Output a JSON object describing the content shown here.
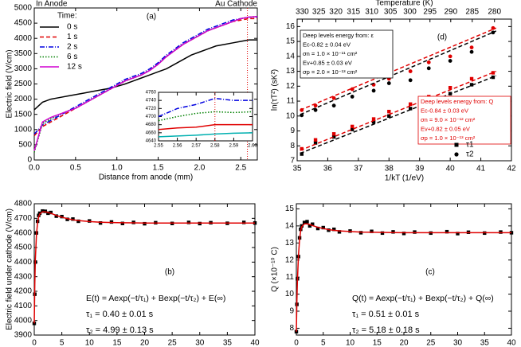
{
  "chart_data": [
    {
      "type": "line",
      "panel_label": "(a)",
      "annotations": [
        "In Anode",
        "Au Cathode"
      ],
      "xlabel": "Distance from anode (mm)",
      "ylabel": "Electric field (V/cm)",
      "xlim": [
        0,
        2.7
      ],
      "xticks": [
        {
          "value": 0,
          "label": "0.0"
        },
        0.5,
        {
          "value": 1,
          "label": "1.0"
        },
        1.5,
        {
          "value": 2,
          "label": "2.0"
        },
        2.5
      ],
      "ylim": [
        0,
        5000
      ],
      "yticks": [
        0,
        500,
        1000,
        1500,
        2000,
        2500,
        3000,
        3500,
        4000,
        4500,
        5000
      ],
      "vline": 2.58,
      "vline_color": "#e00000",
      "legend_title": "Time:",
      "x": [
        0,
        0.1,
        0.2,
        0.3,
        0.4,
        0.5,
        0.6,
        0.7,
        0.8,
        0.9,
        1.0,
        1.1,
        1.2,
        1.3,
        1.4,
        1.5,
        1.6,
        1.7,
        1.8,
        1.9,
        2.0,
        2.1,
        2.2,
        2.3,
        2.4,
        2.5,
        2.6,
        2.7
      ],
      "series": [
        {
          "name": "0 s",
          "color": "#000000",
          "dash": "solid",
          "values": [
            1650,
            1900,
            2000,
            2050,
            2100,
            2150,
            2200,
            2250,
            2300,
            2350,
            2420,
            2500,
            2600,
            2700,
            2800,
            2900,
            3000,
            3150,
            3300,
            3450,
            3550,
            3650,
            3750,
            3800,
            3850,
            3900,
            3950,
            3950
          ]
        },
        {
          "name": "1 s",
          "color": "#e00000",
          "dash": "dashed",
          "values": [
            800,
            1100,
            1250,
            1400,
            1550,
            1700,
            1850,
            2000,
            2150,
            2300,
            2450,
            2600,
            2700,
            2800,
            2950,
            3150,
            3400,
            3600,
            3800,
            3950,
            4100,
            4250,
            4350,
            4450,
            4550,
            4600,
            4650,
            4650
          ]
        },
        {
          "name": "2 s",
          "color": "#0000e0",
          "dash": "dashdot",
          "values": [
            850,
            1150,
            1300,
            1450,
            1600,
            1750,
            1900,
            2050,
            2200,
            2350,
            2500,
            2650,
            2750,
            2850,
            3000,
            3200,
            3450,
            3650,
            3850,
            4000,
            4150,
            4300,
            4400,
            4500,
            4600,
            4650,
            4700,
            4700
          ]
        },
        {
          "name": "6 s",
          "color": "#008000",
          "dash": "dotted",
          "values": [
            250,
            1200,
            1350,
            1500,
            1600,
            1700,
            1850,
            2000,
            2150,
            2300,
            2450,
            2600,
            2700,
            2800,
            2950,
            3150,
            3400,
            3600,
            3800,
            3950,
            4100,
            4250,
            4350,
            4450,
            4550,
            4650,
            4700,
            4720
          ]
        },
        {
          "name": "12 s",
          "color": "#d000d0",
          "dash": "solid",
          "values": [
            300,
            1250,
            1400,
            1500,
            1600,
            1700,
            1850,
            2000,
            2150,
            2300,
            2450,
            2600,
            2700,
            2800,
            2950,
            3150,
            3400,
            3600,
            3800,
            3950,
            4100,
            4250,
            4350,
            4450,
            4550,
            4650,
            4700,
            4720
          ]
        }
      ],
      "inset": {
        "xlim": [
          2.55,
          2.6
        ],
        "xticks": [
          2.55,
          2.56,
          2.57,
          2.58,
          2.59,
          {
            "value": 2.6,
            "label": "2.60"
          }
        ],
        "ylim": [
          4640,
          4760
        ],
        "yticks": [
          4640,
          4660,
          4680,
          4700,
          4720,
          4740,
          4760
        ],
        "vline": 2.58,
        "x": [
          2.55,
          2.56,
          2.57,
          2.58,
          2.59,
          2.6
        ],
        "series": [
          {
            "color": "#00b0b0",
            "dash": "solid",
            "values": [
              4650,
              4652,
              4654,
              4657,
              4659,
              4660
            ]
          },
          {
            "color": "#e00000",
            "dash": "solid",
            "values": [
              4668,
              4672,
              4674,
              4680,
              4680,
              4680
            ]
          },
          {
            "color": "#008000",
            "dash": "dotted",
            "values": [
              4690,
              4700,
              4708,
              4712,
              4710,
              4712
            ]
          },
          {
            "color": "#0000e0",
            "dash": "dashdot",
            "values": [
              4700,
              4720,
              4730,
              4745,
              4740,
              4740
            ]
          }
        ]
      }
    },
    {
      "type": "scatter",
      "panel_label": "(d)",
      "xlabel": "1/kT (1/eV)",
      "ylabel": "ln(τT²) (sK²)",
      "x2label": "Temperature (K)",
      "x2ticks": [
        330,
        325,
        320,
        315,
        310,
        305,
        300,
        295,
        290,
        285,
        280
      ],
      "xlim": [
        35,
        42
      ],
      "xticks": [
        35,
        36,
        37,
        38,
        39,
        40,
        41,
        42
      ],
      "ylim": [
        7,
        16.5
      ],
      "yticks": [
        7,
        8,
        9,
        10,
        11,
        12,
        13,
        14,
        15,
        16
      ],
      "boxes": [
        {
          "color": "#000000",
          "lines": [
            "Deep levels energy from: ε",
            "Ec-0.82 ± 0.04 eV",
            "σn = 1.0 × 10⁻¹¹ cm²",
            "Ev+0.85 ± 0.03 eV",
            "σp = 2.0 × 10⁻¹³ cm²"
          ]
        },
        {
          "color": "#e00000",
          "lines": [
            "Deep levels energy from: Q",
            "Ec-0.84 ± 0.03 eV",
            "σn = 9.0 × 10⁻¹² cm²",
            "Ev+0.82 ± 0.05 eV",
            "σp = 1.0 × 10⁻¹³ cm²"
          ]
        }
      ],
      "series": [
        {
          "name": "τ1",
          "color": "#000000",
          "marker": "square",
          "x": [
            35.15,
            35.6,
            36.2,
            36.8,
            37.5,
            38.0,
            38.7,
            39.3,
            40.0,
            40.7,
            41.4
          ],
          "values": [
            7.45,
            8.2,
            8.6,
            9.1,
            9.6,
            10.0,
            10.5,
            11.0,
            11.5,
            12.1,
            12.6
          ]
        },
        {
          "name": "τ2",
          "color": "#000000",
          "marker": "circle",
          "x": [
            35.15,
            35.6,
            36.2,
            36.8,
            37.5,
            38.0,
            38.7,
            39.3,
            40.0,
            40.7,
            41.4
          ],
          "values": [
            10.05,
            10.4,
            10.7,
            11.3,
            11.7,
            12.2,
            12.4,
            13.2,
            13.7,
            14.3,
            15.6
          ]
        },
        {
          "color": "#e00000",
          "marker": "square",
          "x": [
            35.15,
            35.6,
            36.2,
            36.8,
            37.5,
            38.0,
            38.7,
            39.3,
            40.0,
            40.7,
            41.4
          ],
          "values": [
            7.8,
            8.4,
            8.8,
            9.3,
            9.8,
            10.3,
            10.8,
            11.3,
            11.9,
            12.5,
            12.9
          ]
        },
        {
          "color": "#e00000",
          "marker": "circle",
          "x": [
            35.15,
            35.6,
            36.2,
            36.8,
            37.5,
            38.0,
            38.7,
            39.3,
            40.0,
            40.7,
            41.4
          ],
          "values": [
            10.4,
            10.7,
            11.2,
            11.8,
            12.1,
            12.5,
            13.0,
            13.6,
            14.0,
            14.6,
            15.9
          ]
        },
        {
          "color": "#000000",
          "dash": "dashed",
          "x": [
            35.1,
            41.5
          ],
          "values": [
            10.1,
            15.7
          ]
        },
        {
          "color": "#e00000",
          "dash": "dashed",
          "x": [
            35.1,
            41.5
          ],
          "values": [
            10.4,
            15.9
          ]
        },
        {
          "color": "#000000",
          "dash": "dashed",
          "x": [
            35.1,
            41.5
          ],
          "values": [
            7.5,
            12.7
          ]
        },
        {
          "color": "#e00000",
          "dash": "dashed",
          "x": [
            35.1,
            41.5
          ],
          "values": [
            7.7,
            13.0
          ]
        }
      ]
    },
    {
      "type": "scatter",
      "panel_label": "(b)",
      "xlabel": "Time (s)",
      "ylabel": "Electric field under cathode (V/cm)",
      "xlim": [
        0,
        40
      ],
      "xticks": [
        0,
        5,
        10,
        15,
        20,
        25,
        30,
        35,
        40
      ],
      "ylim": [
        3900,
        4800
      ],
      "yticks": [
        3900,
        4000,
        4100,
        4200,
        4300,
        4400,
        4500,
        4600,
        4700,
        4800
      ],
      "annotations": [
        "E(t) = Aexp(−t/τ₁) + Bexp(−t/τ₂) + E(∞)",
        "τ₁ = 0.40 ± 0.01 s",
        "τ₂ = 4.99 ± 0.13 s"
      ],
      "series": [
        {
          "color": "#000000",
          "marker": "square",
          "x": [
            0,
            0.1,
            0.2,
            0.4,
            0.6,
            0.8,
            1,
            1.5,
            2,
            2.5,
            3,
            4,
            5,
            6,
            7,
            8,
            10,
            12,
            14,
            16,
            18,
            20,
            22,
            25,
            28,
            30,
            32,
            35,
            38,
            40
          ],
          "values": [
            3980,
            4180,
            4400,
            4600,
            4680,
            4720,
            4735,
            4750,
            4748,
            4735,
            4740,
            4715,
            4712,
            4693,
            4695,
            4680,
            4682,
            4668,
            4675,
            4665,
            4672,
            4663,
            4670,
            4665,
            4672,
            4664,
            4670,
            4666,
            4672,
            4668
          ]
        },
        {
          "color": "#e00000",
          "dash": "solid",
          "x": [
            0,
            0.1,
            0.2,
            0.4,
            0.6,
            0.8,
            1,
            1.5,
            2,
            2.5,
            3,
            4,
            5,
            6,
            7,
            8,
            10,
            12,
            14,
            16,
            18,
            20,
            22,
            25,
            28,
            30,
            32,
            35,
            38,
            40
          ],
          "values": [
            3980,
            4250,
            4420,
            4590,
            4670,
            4710,
            4730,
            4745,
            4745,
            4740,
            4735,
            4720,
            4708,
            4698,
            4690,
            4685,
            4678,
            4673,
            4671,
            4670,
            4669,
            4668,
            4668,
            4668,
            4668,
            4668,
            4668,
            4668,
            4668,
            4668
          ]
        }
      ]
    },
    {
      "type": "scatter",
      "panel_label": "(c)",
      "xlabel": "Time (s)",
      "ylabel": "Q (×10⁻¹⁰ C)",
      "xlim": [
        0,
        40
      ],
      "xticks": [
        0,
        5,
        10,
        15,
        20,
        25,
        30,
        35,
        40
      ],
      "ylim": [
        7.6,
        15.3
      ],
      "yticks": [
        8,
        9,
        10,
        11,
        12,
        13,
        14,
        15
      ],
      "annotations": [
        "Q(t) = Aexp(−t/τ₁) + Bexp(−t/τ₂) + Q(∞)",
        "τ₁ = 0.51 ± 0.01 s",
        "τ₂ = 5.18 ± 0.18 s"
      ],
      "series": [
        {
          "color": "#000000",
          "marker": "square",
          "x": [
            0,
            0.1,
            0.2,
            0.4,
            0.6,
            0.8,
            1,
            1.5,
            2,
            2.5,
            3,
            4,
            5,
            6,
            7,
            8,
            10,
            12,
            14,
            16,
            18,
            20,
            22,
            25,
            28,
            30,
            32,
            35,
            38,
            40
          ],
          "values": [
            7.8,
            9.4,
            10.9,
            12.2,
            13.3,
            13.8,
            14.0,
            14.2,
            14.25,
            14.0,
            14.1,
            13.85,
            13.9,
            13.75,
            13.8,
            13.65,
            13.7,
            13.6,
            13.68,
            13.58,
            13.65,
            13.56,
            13.64,
            13.58,
            13.66,
            13.55,
            13.63,
            13.58,
            13.64,
            13.6
          ]
        },
        {
          "color": "#e00000",
          "dash": "solid",
          "x": [
            0,
            0.1,
            0.2,
            0.4,
            0.6,
            0.8,
            1,
            1.5,
            2,
            2.5,
            3,
            4,
            5,
            6,
            7,
            8,
            10,
            12,
            14,
            16,
            18,
            20,
            22,
            25,
            28,
            30,
            32,
            35,
            38,
            40
          ],
          "values": [
            7.8,
            9.6,
            10.8,
            12.3,
            13.2,
            13.7,
            13.95,
            14.12,
            14.12,
            14.08,
            14.02,
            13.92,
            13.85,
            13.78,
            13.74,
            13.71,
            13.67,
            13.64,
            13.63,
            13.62,
            13.61,
            13.6,
            13.6,
            13.6,
            13.6,
            13.6,
            13.6,
            13.6,
            13.6,
            13.6
          ]
        }
      ]
    }
  ]
}
